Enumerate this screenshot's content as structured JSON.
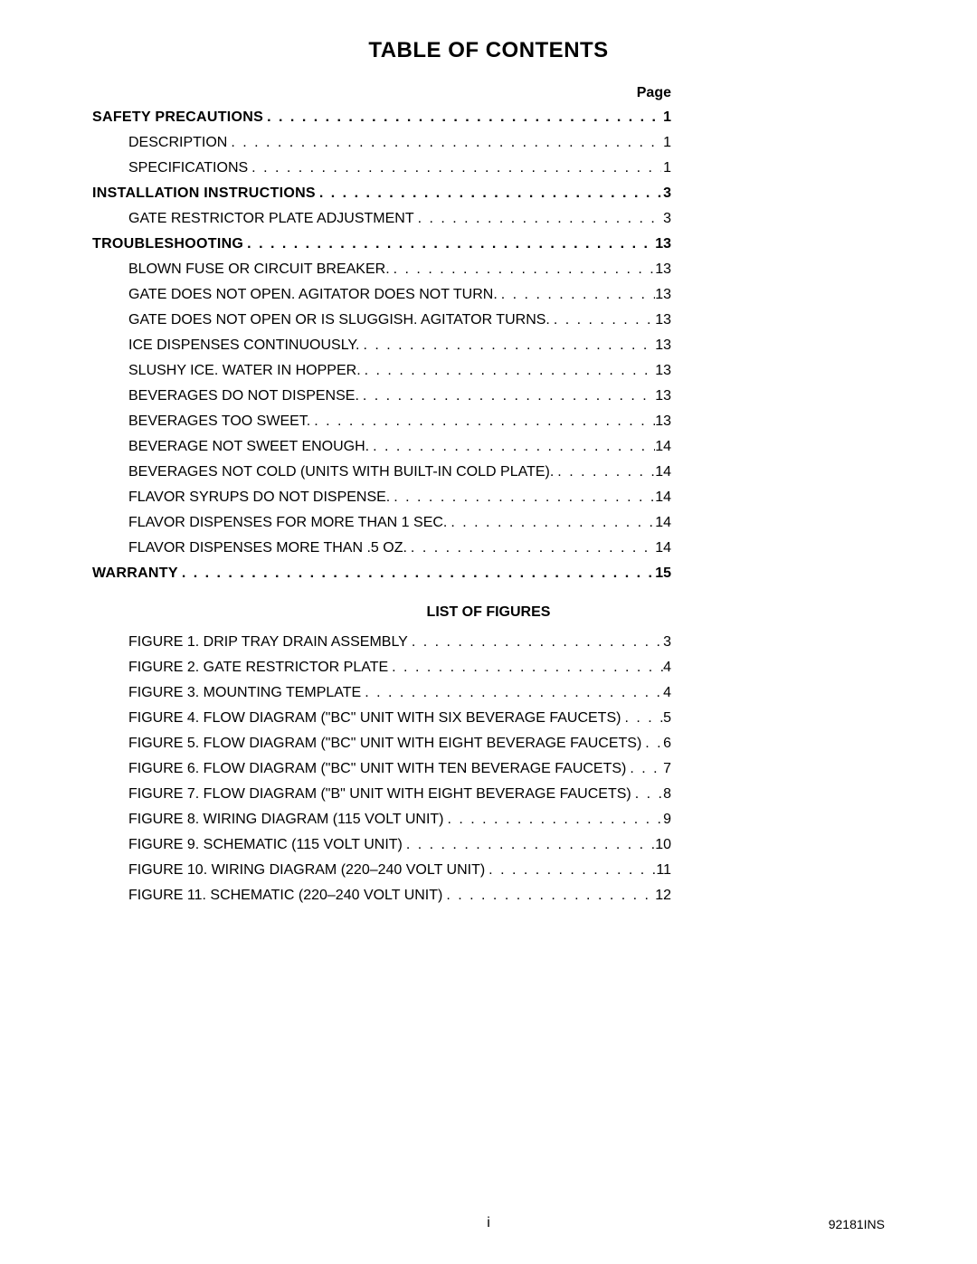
{
  "title": "TABLE OF CONTENTS",
  "page_label": "Page",
  "lof_title": "LIST OF FIGURES",
  "footer_center": "i",
  "footer_right": "92181INS",
  "dots": ". . . . . . . . . . . . . . . . . . . . . . . . . . . . . . . . . . . . . . . . . . . . . . . . . . . . . . . . . . . . . . . . . . . . . . . . . . . . . . . . . . . . . . . . . . . . . . . . . . . . . . . . . . . . . . .",
  "toc": [
    {
      "label": "SAFETY PRECAUTIONS",
      "page": "1",
      "bold": true,
      "indent": 0
    },
    {
      "label": "DESCRIPTION",
      "page": "1",
      "bold": false,
      "indent": 1
    },
    {
      "label": "SPECIFICATIONS",
      "page": "1",
      "bold": false,
      "indent": 1
    },
    {
      "label": "INSTALLATION INSTRUCTIONS",
      "page": "3",
      "bold": true,
      "indent": 0
    },
    {
      "label": "GATE RESTRICTOR PLATE ADJUSTMENT",
      "page": "3",
      "bold": false,
      "indent": 1
    },
    {
      "label": "TROUBLESHOOTING",
      "page": "13",
      "bold": true,
      "indent": 0
    },
    {
      "label": "BLOWN FUSE OR CIRCUIT BREAKER.",
      "page": "13",
      "bold": false,
      "indent": 1
    },
    {
      "label": "GATE DOES NOT OPEN.  AGITATOR DOES NOT TURN.",
      "page": "13",
      "bold": false,
      "indent": 1
    },
    {
      "label": "GATE DOES NOT OPEN OR IS SLUGGISH.  AGITATOR TURNS.",
      "page": "13",
      "bold": false,
      "indent": 1
    },
    {
      "label": "ICE DISPENSES CONTINUOUSLY.",
      "page": "13",
      "bold": false,
      "indent": 1
    },
    {
      "label": "SLUSHY ICE.  WATER IN HOPPER.",
      "page": "13",
      "bold": false,
      "indent": 1
    },
    {
      "label": "BEVERAGES DO NOT DISPENSE.",
      "page": "13",
      "bold": false,
      "indent": 1
    },
    {
      "label": "BEVERAGES TOO SWEET.",
      "page": "13",
      "bold": false,
      "indent": 1
    },
    {
      "label": "BEVERAGE NOT SWEET ENOUGH.",
      "page": "14",
      "bold": false,
      "indent": 1
    },
    {
      "label": "BEVERAGES NOT COLD (UNITS WITH BUILT-IN COLD PLATE).",
      "page": "14",
      "bold": false,
      "indent": 1
    },
    {
      "label": "FLAVOR SYRUPS DO NOT DISPENSE.",
      "page": "14",
      "bold": false,
      "indent": 1
    },
    {
      "label": "FLAVOR DISPENSES FOR MORE THAN 1 SEC.",
      "page": "14",
      "bold": false,
      "indent": 1
    },
    {
      "label": "FLAVOR DISPENSES MORE THAN .5 OZ.",
      "page": "14",
      "bold": false,
      "indent": 1
    },
    {
      "label": "WARRANTY",
      "page": "15",
      "bold": true,
      "indent": 0
    }
  ],
  "lof": [
    {
      "label": "FIGURE 1. DRIP TRAY DRAIN ASSEMBLY",
      "page": "3"
    },
    {
      "label": "FIGURE 2. GATE RESTRICTOR PLATE",
      "page": "4"
    },
    {
      "label": "FIGURE 3. MOUNTING TEMPLATE",
      "page": "4"
    },
    {
      "label": "FIGURE 4. FLOW DIAGRAM (\"BC\" UNIT WITH SIX BEVERAGE FAUCETS)",
      "page": "5"
    },
    {
      "label": "FIGURE 5. FLOW DIAGRAM (\"BC\" UNIT WITH EIGHT BEVERAGE FAUCETS)",
      "page": "6"
    },
    {
      "label": "FIGURE 6. FLOW DIAGRAM (\"BC\" UNIT WITH TEN BEVERAGE FAUCETS)",
      "page": "7"
    },
    {
      "label": "FIGURE 7. FLOW DIAGRAM (\"B\" UNIT WITH EIGHT BEVERAGE FAUCETS)",
      "page": "8"
    },
    {
      "label": "FIGURE 8. WIRING DIAGRAM (115 VOLT UNIT)",
      "page": "9"
    },
    {
      "label": "FIGURE 9. SCHEMATIC (115 VOLT UNIT)",
      "page": "10"
    },
    {
      "label": "FIGURE 10. WIRING DIAGRAM (220–240 VOLT UNIT)",
      "page": "11"
    },
    {
      "label": "FIGURE 11. SCHEMATIC (220–240 VOLT UNIT)",
      "page": "12"
    }
  ]
}
